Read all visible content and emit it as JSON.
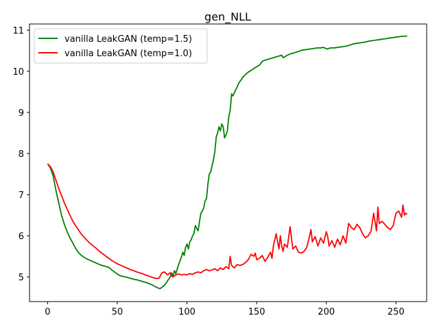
{
  "chart_data": {
    "type": "line",
    "title": "gen_NLL",
    "xlabel": "",
    "ylabel": "",
    "xlim": [
      -13,
      272
    ],
    "ylim": [
      4.4,
      11.15
    ],
    "xticks": [
      0,
      50,
      100,
      150,
      200,
      250
    ],
    "yticks": [
      5,
      6,
      7,
      8,
      9,
      10,
      11
    ],
    "grid": false,
    "legend_position": "top-left",
    "series": [
      {
        "name": "vanilla LeakGAN (temp=1.5)",
        "color": "#008000",
        "x": [
          0,
          2,
          4,
          6,
          8,
          10,
          12,
          14,
          16,
          18,
          20,
          22,
          24,
          26,
          28,
          30,
          32,
          34,
          36,
          38,
          40,
          42,
          44,
          46,
          48,
          50,
          52,
          54,
          56,
          58,
          60,
          62,
          64,
          66,
          68,
          70,
          72,
          74,
          76,
          78,
          80,
          81,
          82,
          84,
          86,
          88,
          89,
          90,
          91,
          92,
          94,
          96,
          97,
          98,
          99,
          100,
          101,
          102,
          103,
          104,
          105,
          106,
          107,
          108,
          109,
          110,
          111,
          112,
          113,
          114,
          115,
          116,
          117,
          118,
          119,
          120,
          121,
          122,
          123,
          124,
          125,
          126,
          127,
          128,
          129,
          130,
          131,
          132,
          133,
          134,
          135,
          136,
          137,
          138,
          140,
          142,
          144,
          146,
          148,
          150,
          152,
          154,
          156,
          158,
          160,
          161,
          162,
          164,
          166,
          168,
          169,
          170,
          172,
          174,
          176,
          178,
          180,
          182,
          184,
          186,
          188,
          190,
          192,
          194,
          196,
          198,
          200,
          201,
          202,
          204,
          206,
          208,
          210,
          212,
          214,
          216,
          218,
          220,
          222,
          224,
          226,
          228,
          230,
          232,
          234,
          236,
          238,
          240,
          242,
          244,
          246,
          248,
          250,
          252,
          254,
          256,
          258
        ],
        "values": [
          7.75,
          7.65,
          7.45,
          7.1,
          6.8,
          6.5,
          6.28,
          6.1,
          5.95,
          5.83,
          5.7,
          5.6,
          5.53,
          5.48,
          5.44,
          5.41,
          5.38,
          5.35,
          5.32,
          5.29,
          5.27,
          5.25,
          5.23,
          5.17,
          5.12,
          5.07,
          5.03,
          5.01,
          5.0,
          4.98,
          4.96,
          4.94,
          4.93,
          4.91,
          4.89,
          4.87,
          4.85,
          4.82,
          4.79,
          4.75,
          4.72,
          4.72,
          4.75,
          4.8,
          4.9,
          5.0,
          5.1,
          5.02,
          5.15,
          5.08,
          5.3,
          5.48,
          5.6,
          5.52,
          5.72,
          5.8,
          5.68,
          5.85,
          5.9,
          6.0,
          6.05,
          6.25,
          6.18,
          6.12,
          6.35,
          6.55,
          6.6,
          6.68,
          6.85,
          6.9,
          7.25,
          7.5,
          7.55,
          7.7,
          7.85,
          8.05,
          8.4,
          8.5,
          8.65,
          8.55,
          8.72,
          8.65,
          8.38,
          8.45,
          8.55,
          8.9,
          9.05,
          9.45,
          9.4,
          9.48,
          9.55,
          9.62,
          9.7,
          9.75,
          9.85,
          9.92,
          9.98,
          10.02,
          10.07,
          10.11,
          10.15,
          10.24,
          10.27,
          10.29,
          10.31,
          10.32,
          10.33,
          10.35,
          10.37,
          10.39,
          10.33,
          10.35,
          10.39,
          10.42,
          10.44,
          10.46,
          10.48,
          10.51,
          10.52,
          10.53,
          10.54,
          10.55,
          10.56,
          10.57,
          10.57,
          10.58,
          10.55,
          10.54,
          10.56,
          10.57,
          10.57,
          10.58,
          10.59,
          10.6,
          10.61,
          10.63,
          10.65,
          10.67,
          10.68,
          10.69,
          10.7,
          10.71,
          10.73,
          10.74,
          10.75,
          10.76,
          10.77,
          10.78,
          10.79,
          10.8,
          10.81,
          10.82,
          10.83,
          10.84,
          10.85,
          10.85,
          10.86
        ]
      },
      {
        "name": "vanilla LeakGAN (temp=1.0)",
        "color": "#ff0000",
        "x": [
          0,
          2,
          4,
          6,
          8,
          10,
          12,
          14,
          16,
          18,
          20,
          22,
          24,
          26,
          28,
          30,
          32,
          34,
          36,
          38,
          40,
          42,
          44,
          46,
          48,
          50,
          52,
          54,
          56,
          58,
          60,
          62,
          64,
          66,
          68,
          70,
          72,
          74,
          76,
          78,
          80,
          82,
          84,
          86,
          88,
          89,
          90,
          92,
          94,
          96,
          98,
          100,
          102,
          104,
          106,
          108,
          110,
          112,
          114,
          116,
          118,
          120,
          122,
          124,
          126,
          128,
          130,
          131,
          132,
          134,
          136,
          138,
          140,
          142,
          144,
          146,
          148,
          149,
          150,
          152,
          154,
          156,
          158,
          160,
          161,
          162,
          164,
          166,
          167,
          168,
          169,
          170,
          172,
          174,
          176,
          178,
          180,
          182,
          184,
          186,
          188,
          189,
          190,
          192,
          194,
          196,
          198,
          200,
          201,
          202,
          204,
          206,
          208,
          210,
          212,
          214,
          216,
          218,
          220,
          222,
          224,
          226,
          228,
          230,
          232,
          234,
          236,
          237,
          238,
          240,
          242,
          244,
          246,
          248,
          250,
          252,
          254,
          255,
          256,
          257,
          258
        ],
        "values": [
          7.75,
          7.68,
          7.55,
          7.35,
          7.15,
          6.98,
          6.8,
          6.65,
          6.5,
          6.36,
          6.25,
          6.15,
          6.05,
          5.97,
          5.9,
          5.83,
          5.77,
          5.72,
          5.66,
          5.6,
          5.55,
          5.5,
          5.45,
          5.4,
          5.36,
          5.32,
          5.29,
          5.26,
          5.23,
          5.2,
          5.17,
          5.15,
          5.12,
          5.1,
          5.08,
          5.05,
          5.03,
          5.0,
          4.98,
          4.96,
          4.97,
          5.1,
          5.12,
          5.05,
          5.1,
          5.02,
          5.0,
          5.05,
          5.07,
          5.05,
          5.06,
          5.05,
          5.08,
          5.06,
          5.1,
          5.12,
          5.1,
          5.15,
          5.18,
          5.15,
          5.17,
          5.2,
          5.15,
          5.22,
          5.18,
          5.25,
          5.2,
          5.5,
          5.28,
          5.22,
          5.3,
          5.28,
          5.3,
          5.35,
          5.42,
          5.55,
          5.5,
          5.58,
          5.42,
          5.45,
          5.52,
          5.38,
          5.48,
          5.6,
          5.45,
          5.75,
          6.05,
          5.68,
          6.0,
          5.75,
          5.62,
          5.8,
          5.72,
          6.22,
          5.68,
          5.75,
          5.6,
          5.58,
          5.62,
          5.72,
          6.0,
          6.15,
          5.85,
          5.98,
          5.75,
          5.95,
          5.82,
          6.1,
          5.98,
          5.75,
          5.88,
          5.72,
          5.92,
          5.78,
          6.0,
          5.82,
          6.3,
          6.2,
          6.15,
          6.28,
          6.2,
          6.05,
          5.95,
          6.0,
          6.1,
          6.55,
          6.12,
          6.7,
          6.3,
          6.35,
          6.28,
          6.2,
          6.15,
          6.25,
          6.55,
          6.6,
          6.45,
          6.75,
          6.5,
          6.55,
          6.52
        ]
      }
    ]
  }
}
